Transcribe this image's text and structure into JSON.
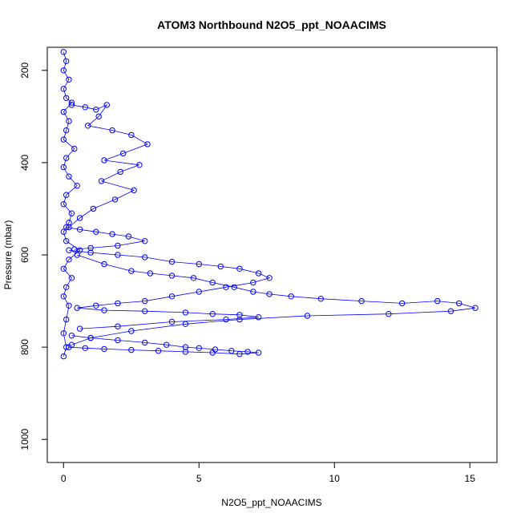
{
  "chart_data": {
    "type": "scatter",
    "title": "ATOM3 Northbound N2O5_ppt_NOAACIMS",
    "xlabel": "N2O5_ppt_NOAACIMS",
    "ylabel": "Pressure (mbar)",
    "xlim": [
      -0.6,
      16
    ],
    "ylim": [
      1050,
      150
    ],
    "y_reversed": true,
    "grid": false,
    "legend": "none",
    "marker": "open-circle",
    "connect_points": true,
    "color": "#0000ff",
    "x_ticks": [
      0,
      5,
      10,
      15
    ],
    "x_tick_labels": [
      "0",
      "5",
      "10",
      "15"
    ],
    "y_ticks": [
      200,
      400,
      600,
      800,
      1000
    ],
    "y_tick_labels": [
      "200",
      "400",
      "600",
      "800",
      "1000"
    ],
    "series": [
      {
        "x": [
          0.0,
          0.1,
          0.0,
          0.2,
          0.0,
          0.1,
          0.3,
          0.0,
          0.2,
          0.1,
          0.0,
          0.4,
          0.1,
          0.0,
          0.2,
          0.5,
          0.1,
          0.0,
          0.3,
          0.2,
          0.0,
          0.1,
          0.6,
          0.2,
          0.0,
          0.3,
          0.1,
          0.0,
          0.2,
          0.1,
          0.0,
          0.1,
          0.0
        ],
        "y": [
          160,
          180,
          200,
          220,
          240,
          260,
          270,
          290,
          310,
          330,
          350,
          370,
          390,
          410,
          430,
          450,
          470,
          490,
          510,
          530,
          550,
          570,
          590,
          610,
          630,
          650,
          670,
          690,
          710,
          740,
          770,
          800,
          820
        ]
      },
      {
        "x": [
          0.3,
          0.8,
          1.2,
          1.6,
          1.3,
          0.9,
          1.8,
          2.5,
          3.1,
          2.2,
          1.5,
          2.8,
          2.1,
          1.4,
          2.6,
          1.9,
          1.1,
          0.6,
          0.2
        ],
        "y": [
          275,
          280,
          285,
          275,
          300,
          320,
          330,
          340,
          360,
          380,
          395,
          405,
          420,
          440,
          460,
          480,
          500,
          520,
          540
        ]
      },
      {
        "x": [
          0.5,
          1.5,
          2.5,
          3.2,
          4.0,
          4.8,
          5.5,
          6.3,
          7.0,
          7.6,
          8.4,
          9.5,
          11.0,
          12.5,
          13.8,
          14.6,
          15.2,
          14.3,
          12.0,
          9.0,
          6.5,
          4.5,
          2.5,
          1.0,
          0.3
        ],
        "y": [
          600,
          620,
          635,
          640,
          645,
          650,
          660,
          670,
          680,
          685,
          690,
          695,
          700,
          705,
          700,
          705,
          715,
          722,
          728,
          732,
          740,
          750,
          765,
          780,
          795
        ]
      },
      {
        "x": [
          0.2,
          1.0,
          2.0,
          3.0,
          4.0,
          5.0,
          5.8,
          6.5,
          7.2,
          7.6,
          7.0,
          6.0,
          5.0,
          4.0,
          3.0,
          2.0,
          1.2,
          0.5,
          1.5,
          3.0,
          4.5,
          5.5,
          6.5,
          7.2,
          6.0,
          4.0,
          2.0,
          0.6
        ],
        "y": [
          590,
          595,
          600,
          605,
          615,
          620,
          625,
          630,
          640,
          650,
          660,
          670,
          680,
          690,
          700,
          705,
          710,
          715,
          720,
          722,
          725,
          728,
          730,
          735,
          740,
          745,
          755,
          760
        ]
      },
      {
        "x": [
          0.3,
          1.0,
          2.0,
          3.0,
          3.8,
          4.5,
          5.0,
          5.6,
          6.2,
          6.8,
          7.2,
          6.5,
          5.5,
          4.5,
          3.5,
          2.5,
          1.5,
          0.8,
          0.2
        ],
        "y": [
          775,
          780,
          785,
          790,
          795,
          800,
          802,
          805,
          808,
          810,
          812,
          815,
          812,
          810,
          808,
          806,
          804,
          802,
          800
        ]
      },
      {
        "x": [
          0.1,
          0.6,
          1.2,
          1.8,
          2.4,
          3.0,
          2.0,
          1.0,
          0.4
        ],
        "y": [
          540,
          545,
          550,
          555,
          560,
          570,
          580,
          585,
          588
        ]
      }
    ]
  }
}
